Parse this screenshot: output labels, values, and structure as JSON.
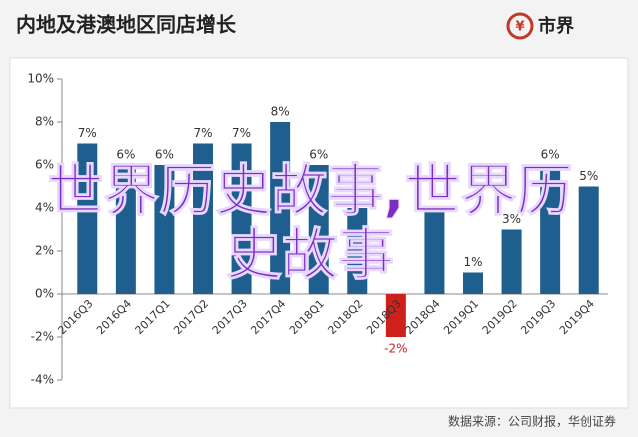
{
  "chart_data": {
    "type": "bar",
    "title": "内地及港澳地区同店增长",
    "brand": "市界",
    "source": "数据来源：公司财报，华创证券",
    "annotation": "世界历史故事,世界历史故事",
    "categories": [
      "2016Q3",
      "2016Q4",
      "2017Q1",
      "2017Q2",
      "2017Q3",
      "2017Q4",
      "2018Q1",
      "2018Q2",
      "2018Q3",
      "2018Q4",
      "2019Q1",
      "2019Q2",
      "2019Q3",
      "2019Q4"
    ],
    "values": [
      7,
      6,
      6,
      7,
      7,
      8,
      6,
      4,
      -2,
      4,
      1,
      3,
      6,
      5
    ],
    "value_labels": [
      "7%",
      "6%",
      "6%",
      "7%",
      "7%",
      "8%",
      "6%",
      null,
      "-2%",
      null,
      "1%",
      "3%",
      "6%",
      "5%"
    ],
    "color": "#1f5f8f",
    "negative_color": "#d0201c",
    "ylim": [
      -4,
      10
    ],
    "yticks": [
      {
        "value": -4,
        "label": "-4%"
      },
      {
        "value": -2,
        "label": "-2%"
      },
      {
        "value": 0,
        "label": "0%"
      },
      {
        "value": 2,
        "label": "2%"
      },
      {
        "value": 4,
        "label": "4%"
      },
      {
        "value": 6,
        "label": "6%"
      },
      {
        "value": 8,
        "label": "8%"
      },
      {
        "value": 10,
        "label": "10%"
      }
    ],
    "grid": false
  }
}
